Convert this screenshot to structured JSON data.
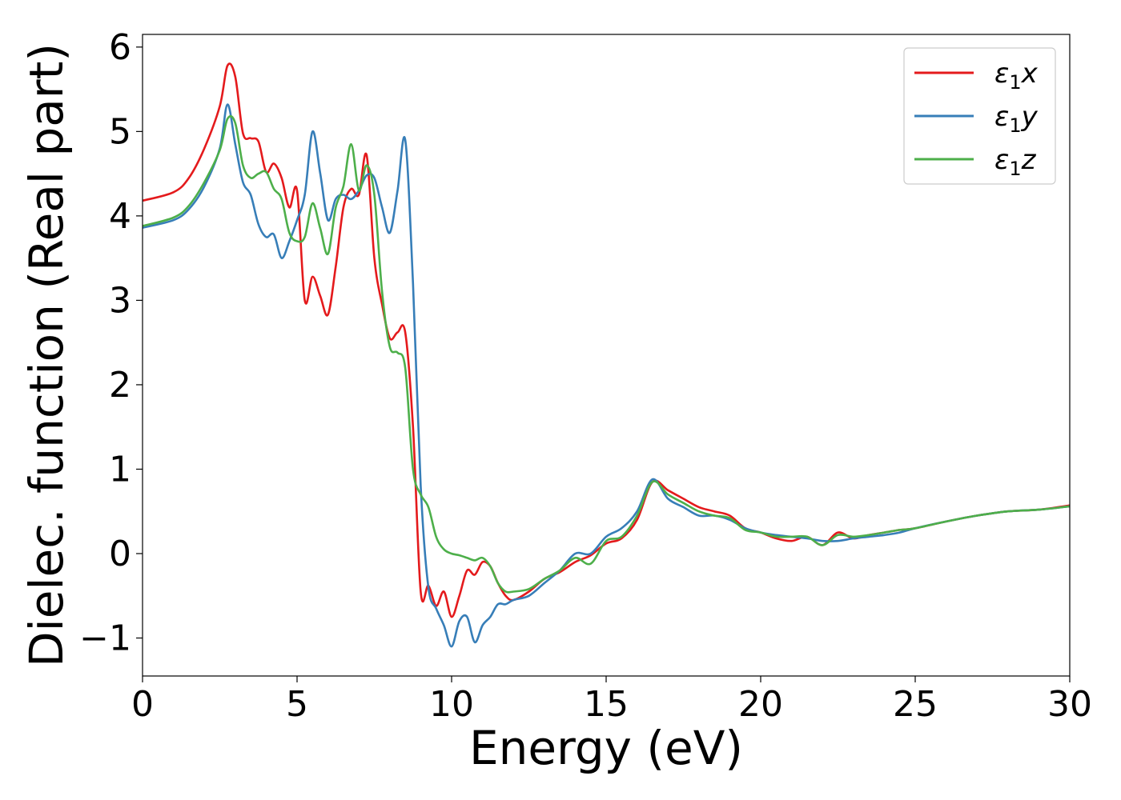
{
  "chart_data": {
    "type": "line",
    "xlabel": "Energy (eV)",
    "ylabel": "Dielec. function (Real part)",
    "xlim": [
      0,
      30
    ],
    "ylim": [
      -1.45,
      6.15
    ],
    "xticks": [
      0,
      5,
      10,
      15,
      20,
      25,
      30
    ],
    "xtick_labels": [
      "0",
      "5",
      "10",
      "15",
      "20",
      "25",
      "30"
    ],
    "yticks": [
      -1,
      0,
      1,
      2,
      3,
      4,
      5,
      6
    ],
    "ytick_labels": [
      "−1",
      "0",
      "1",
      "2",
      "3",
      "4",
      "5",
      "6"
    ],
    "grid": false,
    "legend": {
      "placement": "top-right"
    },
    "series": [
      {
        "name": "ε₁x",
        "name_base": "ε",
        "name_sub": "1",
        "name_var": "x",
        "color": "#e41a1c",
        "x": [
          0,
          1,
          1.5,
          2,
          2.5,
          2.75,
          3,
          3.25,
          3.5,
          3.75,
          4,
          4.25,
          4.5,
          4.75,
          5,
          5.25,
          5.5,
          5.75,
          6,
          6.25,
          6.5,
          6.75,
          7,
          7.25,
          7.5,
          7.75,
          8,
          8.25,
          8.5,
          8.75,
          9,
          9.25,
          9.5,
          9.75,
          10,
          10.25,
          10.5,
          10.75,
          11,
          11.25,
          11.5,
          11.75,
          12,
          12.5,
          13,
          13.5,
          14,
          14.5,
          15,
          15.5,
          16,
          16.5,
          17,
          17.5,
          18,
          18.5,
          19,
          19.5,
          20,
          20.5,
          21,
          21.5,
          22,
          22.5,
          23,
          23.5,
          24,
          24.5,
          25,
          26,
          27,
          28,
          29,
          30
        ],
        "y": [
          4.18,
          4.28,
          4.45,
          4.8,
          5.3,
          5.78,
          5.65,
          4.98,
          4.92,
          4.88,
          4.52,
          4.62,
          4.45,
          4.1,
          4.3,
          3.0,
          3.28,
          3.05,
          2.83,
          3.4,
          4.1,
          4.32,
          4.25,
          4.72,
          3.5,
          2.95,
          2.55,
          2.62,
          2.62,
          1.5,
          -0.45,
          -0.38,
          -0.62,
          -0.45,
          -0.75,
          -0.5,
          -0.2,
          -0.25,
          -0.1,
          -0.15,
          -0.35,
          -0.5,
          -0.55,
          -0.45,
          -0.3,
          -0.22,
          -0.1,
          -0.02,
          0.12,
          0.18,
          0.4,
          0.85,
          0.75,
          0.65,
          0.55,
          0.5,
          0.45,
          0.3,
          0.25,
          0.18,
          0.15,
          0.2,
          0.1,
          0.25,
          0.18,
          0.22,
          0.25,
          0.28,
          0.3,
          0.38,
          0.45,
          0.5,
          0.52,
          0.57
        ]
      },
      {
        "name": "ε₁y",
        "name_base": "ε",
        "name_sub": "1",
        "name_var": "y",
        "color": "#377eb8",
        "x": [
          0,
          1,
          1.5,
          2,
          2.5,
          2.75,
          3,
          3.25,
          3.5,
          3.75,
          4,
          4.25,
          4.5,
          4.75,
          5,
          5.25,
          5.5,
          5.75,
          6,
          6.25,
          6.5,
          6.75,
          7,
          7.25,
          7.5,
          7.75,
          8,
          8.25,
          8.5,
          8.75,
          9,
          9.25,
          9.5,
          9.75,
          10,
          10.25,
          10.5,
          10.75,
          11,
          11.25,
          11.5,
          11.75,
          12,
          12.5,
          13,
          13.5,
          14,
          14.5,
          15,
          15.5,
          16,
          16.5,
          17,
          17.5,
          18,
          18.5,
          19,
          19.5,
          20,
          20.5,
          21,
          21.5,
          22,
          22.5,
          23,
          23.5,
          24,
          24.5,
          25,
          26,
          27,
          28,
          29,
          30
        ],
        "y": [
          3.86,
          3.95,
          4.08,
          4.35,
          4.8,
          5.32,
          4.85,
          4.4,
          4.25,
          3.9,
          3.75,
          3.78,
          3.5,
          3.7,
          3.95,
          4.25,
          5.0,
          4.5,
          3.95,
          4.2,
          4.25,
          4.2,
          4.3,
          4.48,
          4.45,
          4.1,
          3.8,
          4.3,
          4.9,
          3.2,
          0.8,
          -0.4,
          -0.65,
          -0.85,
          -1.1,
          -0.8,
          -0.75,
          -1.05,
          -0.85,
          -0.75,
          -0.6,
          -0.6,
          -0.55,
          -0.5,
          -0.35,
          -0.2,
          0.0,
          0.0,
          0.2,
          0.3,
          0.5,
          0.88,
          0.65,
          0.55,
          0.45,
          0.45,
          0.4,
          0.3,
          0.25,
          0.22,
          0.2,
          0.18,
          0.15,
          0.15,
          0.18,
          0.2,
          0.22,
          0.25,
          0.3,
          0.38,
          0.45,
          0.5,
          0.52,
          0.56
        ]
      },
      {
        "name": "ε₁z",
        "name_base": "ε",
        "name_sub": "1",
        "name_var": "z",
        "color": "#4daf4a",
        "x": [
          0,
          1,
          1.5,
          2,
          2.5,
          2.75,
          3,
          3.25,
          3.5,
          3.75,
          4,
          4.25,
          4.5,
          4.75,
          5,
          5.25,
          5.5,
          5.75,
          6,
          6.25,
          6.5,
          6.75,
          7,
          7.25,
          7.5,
          7.75,
          8,
          8.25,
          8.5,
          8.75,
          9,
          9.25,
          9.5,
          9.75,
          10,
          10.25,
          10.5,
          10.75,
          11,
          11.25,
          11.5,
          11.75,
          12,
          12.5,
          13,
          13.5,
          14,
          14.5,
          15,
          15.5,
          16,
          16.5,
          17,
          17.5,
          18,
          18.5,
          19,
          19.5,
          20,
          20.5,
          21,
          21.5,
          22,
          22.5,
          23,
          23.5,
          24,
          24.5,
          25,
          26,
          27,
          28,
          29,
          30
        ],
        "y": [
          3.88,
          3.98,
          4.12,
          4.4,
          4.78,
          5.15,
          5.1,
          4.6,
          4.45,
          4.5,
          4.52,
          4.32,
          4.2,
          3.8,
          3.7,
          3.75,
          4.15,
          3.85,
          3.55,
          4.1,
          4.35,
          4.85,
          4.3,
          4.6,
          4.25,
          3.1,
          2.45,
          2.38,
          2.2,
          1.0,
          0.7,
          0.55,
          0.2,
          0.05,
          0.0,
          -0.02,
          -0.05,
          -0.08,
          -0.05,
          -0.15,
          -0.35,
          -0.45,
          -0.45,
          -0.42,
          -0.3,
          -0.2,
          -0.05,
          -0.12,
          0.15,
          0.2,
          0.45,
          0.85,
          0.7,
          0.6,
          0.5,
          0.45,
          0.42,
          0.28,
          0.25,
          0.2,
          0.2,
          0.2,
          0.1,
          0.22,
          0.2,
          0.22,
          0.25,
          0.28,
          0.3,
          0.38,
          0.45,
          0.5,
          0.52,
          0.56
        ]
      }
    ]
  }
}
